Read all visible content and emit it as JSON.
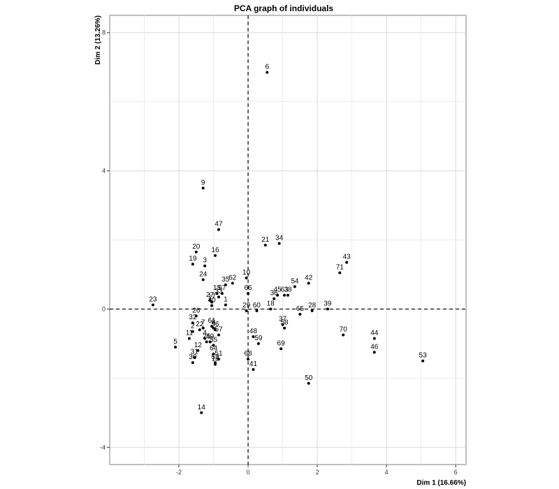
{
  "chart_data": {
    "type": "scatter",
    "title": "PCA graph of individuals",
    "xlabel": "Dim 1 (16.66%)",
    "ylabel": "Dim 2 (13.26%)",
    "xlim": [
      -4,
      6.3
    ],
    "ylim": [
      -4.5,
      8.5
    ],
    "x_ticks": [
      -2,
      0,
      2,
      4,
      6
    ],
    "y_ticks": [
      -4,
      0,
      4,
      8
    ],
    "grid": true,
    "reference_lines": {
      "x": 0,
      "y": 0,
      "style": "dashed"
    },
    "points": [
      {
        "label": "1",
        "x": -0.65,
        "y": 0.12
      },
      {
        "label": "2",
        "x": -1.6,
        "y": -0.65
      },
      {
        "label": "3",
        "x": -1.25,
        "y": 1.25
      },
      {
        "label": "4",
        "x": -1.25,
        "y": -0.85
      },
      {
        "label": "5",
        "x": -2.1,
        "y": -1.1
      },
      {
        "label": "6",
        "x": 0.55,
        "y": 6.85
      },
      {
        "label": "7",
        "x": -1.3,
        "y": -0.55
      },
      {
        "label": "8",
        "x": -1.0,
        "y": -0.55
      },
      {
        "label": "9",
        "x": -1.3,
        "y": 3.5
      },
      {
        "label": "10",
        "x": -0.05,
        "y": 0.9
      },
      {
        "label": "11",
        "x": -1.7,
        "y": -0.85
      },
      {
        "label": "12",
        "x": -1.45,
        "y": -1.2
      },
      {
        "label": "13",
        "x": -0.95,
        "y": -1.6
      },
      {
        "label": "14",
        "x": -1.35,
        "y": -3.0
      },
      {
        "label": "15",
        "x": -0.9,
        "y": 0.45
      },
      {
        "label": "16",
        "x": -0.95,
        "y": 1.55
      },
      {
        "label": "17",
        "x": -1.05,
        "y": 0.2
      },
      {
        "label": "18",
        "x": 0.65,
        "y": 0.0
      },
      {
        "label": "19",
        "x": -1.6,
        "y": 1.3
      },
      {
        "label": "20",
        "x": -1.5,
        "y": 1.65
      },
      {
        "label": "21",
        "x": 0.5,
        "y": 1.85
      },
      {
        "label": "22",
        "x": -1.4,
        "y": -0.6
      },
      {
        "label": "23",
        "x": -2.75,
        "y": 0.12
      },
      {
        "label": "24",
        "x": -1.3,
        "y": 0.85
      },
      {
        "label": "25",
        "x": -1.2,
        "y": -0.95
      },
      {
        "label": "26",
        "x": -1.5,
        "y": -0.2
      },
      {
        "label": "27",
        "x": -1.1,
        "y": 0.25
      },
      {
        "label": "28",
        "x": 1.85,
        "y": -0.05
      },
      {
        "label": "29",
        "x": -0.05,
        "y": -0.05
      },
      {
        "label": "30",
        "x": -1.6,
        "y": -1.55
      },
      {
        "label": "31",
        "x": -1.55,
        "y": -1.4
      },
      {
        "label": "32",
        "x": -1.6,
        "y": -0.4
      },
      {
        "label": "33",
        "x": -0.85,
        "y": 0.35
      },
      {
        "label": "34",
        "x": 0.9,
        "y": 1.9
      },
      {
        "label": "35",
        "x": -0.65,
        "y": 0.7
      },
      {
        "label": "36",
        "x": 0.75,
        "y": 0.3
      },
      {
        "label": "37",
        "x": 1.0,
        "y": -0.45
      },
      {
        "label": "38",
        "x": 1.15,
        "y": 0.4
      },
      {
        "label": "39",
        "x": 2.3,
        "y": 0.0
      },
      {
        "label": "40",
        "x": -1.05,
        "y": 0.1
      },
      {
        "label": "41",
        "x": 0.15,
        "y": -1.75
      },
      {
        "label": "42",
        "x": 1.75,
        "y": 0.75
      },
      {
        "label": "43",
        "x": 2.85,
        "y": 1.35
      },
      {
        "label": "44",
        "x": 3.65,
        "y": -0.85
      },
      {
        "label": "45",
        "x": 0.85,
        "y": 0.4
      },
      {
        "label": "46",
        "x": 3.65,
        "y": -1.25
      },
      {
        "label": "47",
        "x": -0.85,
        "y": 2.3
      },
      {
        "label": "48",
        "x": 0.15,
        "y": -0.8
      },
      {
        "label": "49",
        "x": -1.1,
        "y": -0.95
      },
      {
        "label": "50",
        "x": 1.75,
        "y": -2.15
      },
      {
        "label": "51",
        "x": -0.85,
        "y": -1.45
      },
      {
        "label": "52",
        "x": -0.95,
        "y": -1.55
      },
      {
        "label": "53",
        "x": 5.05,
        "y": -1.5
      },
      {
        "label": "54",
        "x": 1.35,
        "y": 0.65
      },
      {
        "label": "55",
        "x": -1.0,
        "y": -1.05
      },
      {
        "label": "56",
        "x": -0.95,
        "y": -0.6
      },
      {
        "label": "57",
        "x": -0.85,
        "y": -0.75
      },
      {
        "label": "58",
        "x": 1.05,
        "y": -0.55
      },
      {
        "label": "59",
        "x": 0.3,
        "y": -1.0
      },
      {
        "label": "60",
        "x": 0.25,
        "y": -0.05
      },
      {
        "label": "61",
        "x": -1.05,
        "y": -0.5
      },
      {
        "label": "62",
        "x": -0.45,
        "y": 0.75
      },
      {
        "label": "63",
        "x": 1.05,
        "y": 0.4
      },
      {
        "label": "64",
        "x": -1.0,
        "y": -1.3
      },
      {
        "label": "65",
        "x": 1.5,
        "y": -0.15
      },
      {
        "label": "66",
        "x": 0.0,
        "y": 0.45
      },
      {
        "label": "67",
        "x": -0.75,
        "y": 0.45
      },
      {
        "label": "68",
        "x": 0.0,
        "y": -1.45
      },
      {
        "label": "69",
        "x": 0.95,
        "y": -1.15
      },
      {
        "label": "70",
        "x": 2.75,
        "y": -0.75
      },
      {
        "label": "71",
        "x": 2.65,
        "y": 1.05
      }
    ]
  }
}
